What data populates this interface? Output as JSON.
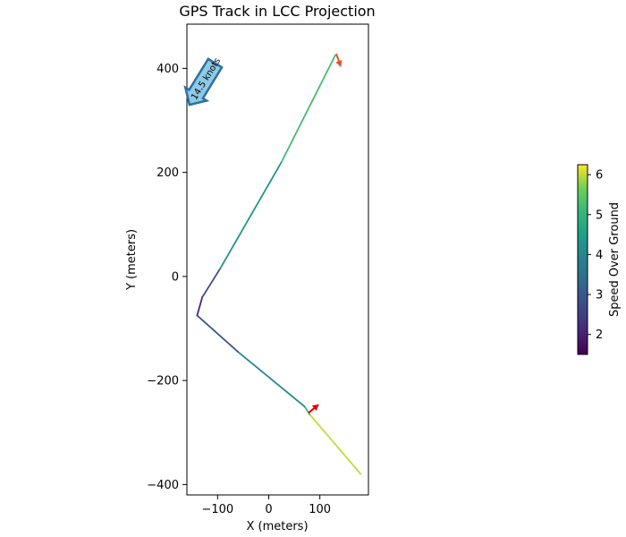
{
  "chart_data": {
    "type": "line",
    "title": "GPS Track in LCC Projection",
    "xlabel": "X (meters)",
    "ylabel": "Y (meters)",
    "xlim": [
      -160,
      195
    ],
    "ylim": [
      -420,
      485
    ],
    "xticks": [
      -100,
      0,
      100
    ],
    "yticks": [
      -400,
      -200,
      0,
      200,
      400
    ],
    "grid": false,
    "series": [
      {
        "x": [
          180,
          80,
          70,
          -60,
          -140,
          -130,
          -95,
          25,
          130
        ],
        "y": [
          -380,
          -265,
          -250,
          -145,
          -75,
          -40,
          15,
          220,
          425
        ],
        "speed": [
          6.1,
          5.9,
          4.2,
          3.9,
          2.0,
          2.2,
          3.5,
          5.0,
          5.4
        ]
      }
    ],
    "direction_markers": [
      {
        "x": 78,
        "y": -262,
        "dx": 11,
        "dy": -9,
        "color": "#e00000"
      },
      {
        "x": 132,
        "y": 428,
        "dx": 5,
        "dy": 14,
        "color": "#e8502a"
      }
    ],
    "wind_arrow": {
      "label": "14.5 knots",
      "tip_x": -155,
      "tip_y": 330,
      "tail_x": -105,
      "tail_y": 410,
      "fill": "#8ec9e6",
      "stroke": "#2f6f9f"
    },
    "colorbar": {
      "label": "Speed Over Ground",
      "min": 1.5,
      "max": 6.25,
      "ticks": [
        2,
        3,
        4,
        5,
        6
      ],
      "colormap": "viridis"
    }
  }
}
